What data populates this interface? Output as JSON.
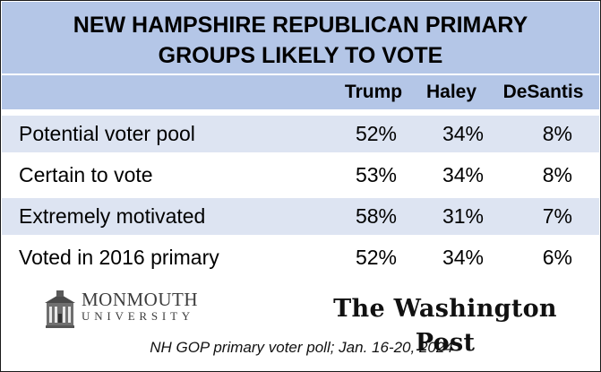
{
  "chart_data": {
    "type": "table",
    "title_lines": [
      "NEW HAMPSHIRE REPUBLICAN PRIMARY",
      "GROUPS LIKELY TO VOTE"
    ],
    "columns": [
      "Trump",
      "Haley",
      "DeSantis"
    ],
    "rows": [
      {
        "label": "Potential voter pool",
        "values": [
          "52%",
          "34%",
          "8%"
        ]
      },
      {
        "label": "Certain to vote",
        "values": [
          "53%",
          "34%",
          "8%"
        ]
      },
      {
        "label": "Extremely motivated",
        "values": [
          "58%",
          "31%",
          "7%"
        ]
      },
      {
        "label": "Voted in 2016 primary",
        "values": [
          "52%",
          "34%",
          "6%"
        ]
      }
    ]
  },
  "logos": {
    "monmouth_name": "MONMOUTH",
    "monmouth_sub": "UNIVERSITY",
    "wapo": "The Washington Post"
  },
  "footnote": "NH GOP primary voter poll; Jan. 16-20, 2024",
  "colors": {
    "header_fill": "#b4c6e7",
    "row_shade": "#dde4f2",
    "border": "#1a1a1a"
  }
}
